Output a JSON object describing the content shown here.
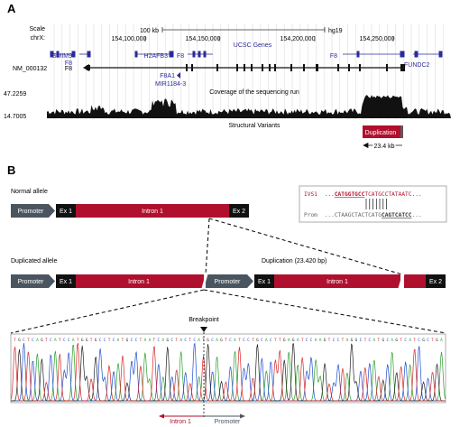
{
  "panelA": {
    "label": "A",
    "scale_label": "Scale",
    "chr_label": "chrX:",
    "scale_bar_value": "100 kb",
    "assembly": "hg19",
    "positions": [
      "154,100,000",
      "154,150,000",
      "154,200,000",
      "154,250,000"
    ],
    "track_title": "UCSC Genes",
    "genes": {
      "smim9": "SMIM9",
      "f8_left": "F8",
      "h2afb3": "H2AFB3",
      "f8_mid": "F8",
      "f8_right": "F8",
      "fundc2": "FUNDC2",
      "nm": "NM_000132",
      "nm_f8": "F8",
      "f8a1": "F8A1",
      "mir": "MIR1184-3"
    },
    "coverage_title": "Coverage of the sequencing run",
    "coverage_max": "47.2259",
    "coverage_min": "14.7005",
    "sv_title": "Structural Variants",
    "duplication_label": "Duplication",
    "duplication_size": "23.4 kb"
  },
  "panelB": {
    "label": "B",
    "normal_allele": "Normal allele",
    "duplicated_allele": "Duplicated allele",
    "promoter": "Promoter",
    "ex1": "Ex 1",
    "intron1": "Intron 1",
    "ex2": "Ex 2",
    "duplication_bp": "Duplication (23.420 bp)",
    "alignment": {
      "ivs_label": "IVS1",
      "ivs_prefix": "...",
      "ivs_match": "CATGGTGCC",
      "ivs_rest": "TCATGCCTATAATC...",
      "prom_label": "Prom",
      "prom_prefix": "...CTAAGCTACTCATG",
      "prom_match": "CAGTCATCC",
      "prom_suffix": "..."
    },
    "breakpoint": "Breakpoint",
    "intron_arrow": "Intron 1",
    "promoter_arrow": "Promoter"
  },
  "colors": {
    "intron": "#b0102e",
    "promoter": "#4a5560",
    "exon": "#111111",
    "gene_blue": "#2a2a9a",
    "coverage": "#111111",
    "trace_a": "#2ca02c",
    "trace_c": "#1f4fd1",
    "trace_g": "#222222",
    "trace_t": "#d62728"
  }
}
